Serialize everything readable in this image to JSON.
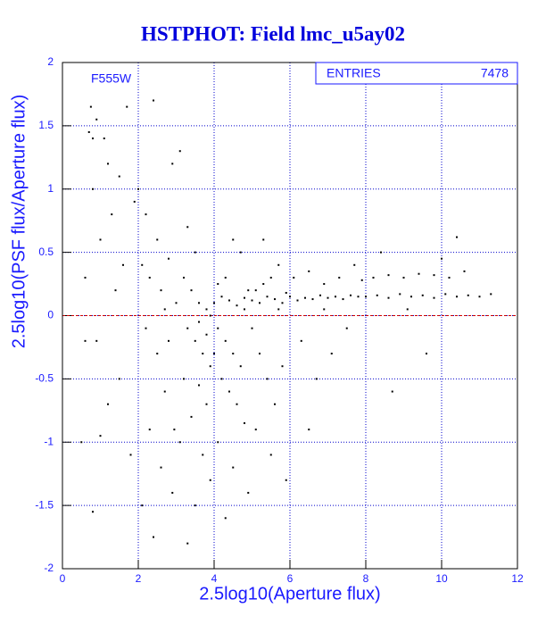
{
  "chart_data": {
    "type": "scatter",
    "title": "HSTPHOT: Field lmc_u5ay02",
    "x_label": "2.5log10(Aperture flux)",
    "y_label": "2.5log10(PSF flux/Aperture flux)",
    "annotation": "F555W",
    "entries_label": "ENTRIES",
    "entries": 7478,
    "xlim": [
      0,
      12
    ],
    "ylim": [
      -2,
      2
    ],
    "xticks": [
      0,
      2,
      4,
      6,
      8,
      10,
      12
    ],
    "yticks": [
      -2,
      -1.5,
      -1,
      -0.5,
      0,
      0.5,
      1,
      1.5,
      2
    ],
    "grid": true,
    "grid_color": "#0000cc",
    "reference_line": 0,
    "reference_color": "#cc0000",
    "color": "#000000",
    "x": [
      0.7,
      0.8,
      0.75,
      0.9,
      1.1,
      0.8,
      1.2,
      1.5,
      1.7,
      1.3,
      1.0,
      0.6,
      1.6,
      1.9,
      1.4,
      0.9,
      1.2,
      0.5,
      1.0,
      0.8,
      1.5,
      1.8,
      0.6,
      2.0,
      2.2,
      2.4,
      2.5,
      2.1,
      2.3,
      2.6,
      2.8,
      2.9,
      2.2,
      2.5,
      2.7,
      2.3,
      2.6,
      2.4,
      2.9,
      2.1,
      2.8,
      3.0,
      2.7,
      2.95,
      3.1,
      3.3,
      3.5,
      3.2,
      3.4,
      3.6,
      3.8,
      3.3,
      3.5,
      3.7,
      3.9,
      3.2,
      3.6,
      3.8,
      3.4,
      3.1,
      3.7,
      3.9,
      3.5,
      3.3,
      3.9,
      3.6,
      3.8,
      4.0,
      4.2,
      4.4,
      4.6,
      4.8,
      4.1,
      4.3,
      4.5,
      4.7,
      4.9,
      4.1,
      4.3,
      4.5,
      4.7,
      4.2,
      4.4,
      4.6,
      4.8,
      4.1,
      4.5,
      4.9,
      4.3,
      4.0,
      4.8,
      5.0,
      5.2,
      5.4,
      5.6,
      5.8,
      5.1,
      5.3,
      5.5,
      5.7,
      5.9,
      5.0,
      5.2,
      5.4,
      5.6,
      5.8,
      5.1,
      5.5,
      5.9,
      5.3,
      5.7,
      6.0,
      6.2,
      6.4,
      6.6,
      6.8,
      7.0,
      7.2,
      7.4,
      7.6,
      7.8,
      6.1,
      6.5,
      6.9,
      7.3,
      7.7,
      6.3,
      6.7,
      7.1,
      6.5,
      7.5,
      6.9,
      7.9,
      8.0,
      8.3,
      8.6,
      8.9,
      9.2,
      9.5,
      9.8,
      10.1,
      10.4,
      10.7,
      11.0,
      11.3,
      8.2,
      8.6,
      9.0,
      9.4,
      9.8,
      10.2,
      10.6,
      10.4,
      8.4,
      9.1,
      9.6,
      8.7,
      10.0
    ],
    "values": [
      1.45,
      1.4,
      1.65,
      1.55,
      1.4,
      1.0,
      1.2,
      1.1,
      1.65,
      0.8,
      0.6,
      0.3,
      0.4,
      0.9,
      0.2,
      -0.2,
      -0.7,
      -1.0,
      -0.95,
      -1.55,
      -0.5,
      -1.1,
      -0.2,
      1.0,
      0.8,
      1.7,
      0.6,
      0.4,
      0.3,
      0.2,
      0.45,
      1.2,
      -0.1,
      -0.3,
      -0.6,
      -0.9,
      -1.2,
      -1.75,
      -1.4,
      -1.5,
      -0.2,
      0.1,
      0.05,
      -0.9,
      1.3,
      0.7,
      0.5,
      0.3,
      0.2,
      0.1,
      0.05,
      -0.1,
      -0.2,
      -0.3,
      -0.4,
      -0.5,
      -0.55,
      -0.7,
      -0.8,
      -1.0,
      -1.1,
      -1.3,
      -1.5,
      -1.8,
      0.0,
      -0.05,
      -0.15,
      0.1,
      0.15,
      0.12,
      0.08,
      0.14,
      0.25,
      0.3,
      0.6,
      0.5,
      0.2,
      -0.1,
      -0.2,
      -0.3,
      -0.4,
      -0.5,
      -0.6,
      -0.7,
      -0.85,
      -1.0,
      -1.2,
      -1.4,
      -1.6,
      -0.3,
      0.05,
      0.12,
      0.1,
      0.15,
      0.13,
      0.1,
      0.2,
      0.25,
      0.3,
      0.05,
      0.18,
      -0.1,
      -0.3,
      -0.5,
      -0.7,
      -0.4,
      -0.9,
      -1.1,
      -1.3,
      0.6,
      0.4,
      0.15,
      0.12,
      0.14,
      0.13,
      0.16,
      0.14,
      0.15,
      0.13,
      0.16,
      0.15,
      0.3,
      0.35,
      0.25,
      0.3,
      0.4,
      -0.2,
      -0.5,
      -0.3,
      -0.9,
      -0.1,
      0.05,
      0.28,
      0.15,
      0.16,
      0.14,
      0.17,
      0.15,
      0.16,
      0.14,
      0.17,
      0.15,
      0.16,
      0.15,
      0.17,
      0.3,
      0.32,
      0.3,
      0.33,
      0.32,
      0.3,
      0.35,
      0.62,
      0.5,
      0.05,
      -0.3,
      -0.6,
      0.45
    ]
  }
}
